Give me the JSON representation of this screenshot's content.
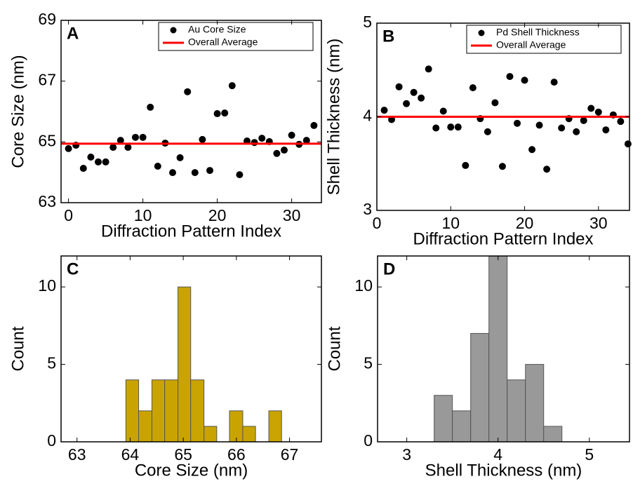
{
  "chart_data": [
    {
      "type": "scatter",
      "label": "A",
      "xlabel": "Diffraction Pattern Index",
      "ylabel": "Core Size (nm)",
      "xlim": [
        -1,
        34
      ],
      "xticks": [
        0,
        10,
        20,
        30
      ],
      "ylim": [
        63,
        69
      ],
      "yticks": [
        63,
        65,
        67,
        69
      ],
      "legend": "upper right",
      "series": [
        {
          "name": "Au Core Size",
          "color": "#000000",
          "kind": "markers",
          "x": [
            0,
            1,
            2,
            3,
            4,
            5,
            6,
            7,
            8,
            9,
            10,
            11,
            12,
            13,
            14,
            15,
            16,
            17,
            18,
            19,
            20,
            21,
            22,
            23,
            24,
            25,
            26,
            27,
            28,
            29,
            30,
            31,
            32,
            33
          ],
          "values": [
            64.78,
            64.89,
            64.13,
            64.5,
            64.34,
            64.34,
            64.82,
            65.05,
            64.82,
            65.15,
            65.15,
            66.14,
            64.2,
            64.96,
            63.99,
            64.48,
            66.65,
            63.99,
            65.08,
            64.06,
            65.93,
            65.95,
            66.85,
            63.92,
            65.03,
            64.98,
            65.12,
            65.01,
            64.62,
            64.73,
            65.22,
            64.92,
            65.05,
            65.54
          ]
        },
        {
          "name": "Overall Average",
          "color": "#ff0000",
          "kind": "hline",
          "values": [
            64.94
          ]
        }
      ]
    },
    {
      "type": "scatter",
      "label": "B",
      "xlabel": "Diffraction Pattern Index",
      "ylabel": "Shell Thickness (nm)",
      "xlim": [
        0,
        34.2
      ],
      "xticks": [
        0,
        10,
        20,
        30
      ],
      "ylim": [
        3,
        5
      ],
      "yticks": [
        3,
        4,
        5
      ],
      "legend": "upper right",
      "series": [
        {
          "name": "Pd Shell Thickness",
          "color": "#000000",
          "kind": "markers",
          "x": [
            1,
            2,
            3,
            4,
            5,
            6,
            7,
            8,
            9,
            10,
            11,
            12,
            13,
            14,
            15,
            16,
            17,
            18,
            19,
            20,
            21,
            22,
            23,
            24,
            25,
            26,
            27,
            28,
            29,
            30,
            31,
            32,
            33,
            34
          ],
          "values": [
            4.07,
            3.97,
            4.32,
            4.14,
            4.26,
            4.2,
            4.51,
            3.88,
            4.06,
            3.89,
            3.89,
            3.48,
            4.31,
            3.98,
            3.84,
            4.15,
            3.47,
            4.43,
            3.93,
            4.39,
            3.65,
            3.91,
            3.44,
            4.37,
            3.88,
            3.98,
            3.84,
            3.96,
            4.09,
            4.05,
            3.86,
            4.02,
            3.95,
            3.71
          ]
        },
        {
          "name": "Overall Average",
          "color": "#ff0000",
          "kind": "hline",
          "values": [
            4.0
          ]
        }
      ]
    },
    {
      "type": "histogram",
      "label": "C",
      "xlabel": "Core Size (nm)",
      "ylabel": "Count",
      "color": "#c9a400",
      "xlim": [
        62.7,
        67.6
      ],
      "xticks": [
        63,
        64,
        65,
        66,
        67
      ],
      "ylim": [
        0,
        12
      ],
      "yticks": [
        0,
        5,
        10
      ],
      "bins": [
        63.92,
        64.16,
        64.41,
        64.65,
        64.9,
        65.14,
        65.39,
        65.63,
        65.87,
        66.12,
        66.36,
        66.61,
        66.85
      ],
      "values": [
        4,
        2,
        4,
        4,
        10,
        4,
        1,
        0,
        2,
        1,
        0,
        2
      ]
    },
    {
      "type": "histogram",
      "label": "D",
      "xlabel": "Shell Thickness (nm)",
      "ylabel": "Count",
      "color": "#999999",
      "xlim": [
        2.68,
        5.44
      ],
      "xticks": [
        3,
        4,
        5
      ],
      "ylim": [
        0,
        12
      ],
      "yticks": [
        0,
        5,
        10
      ],
      "bins": [
        3.3,
        3.5,
        3.7,
        3.9,
        4.1,
        4.3,
        4.5,
        4.7
      ],
      "values": [
        3,
        2,
        7,
        12,
        4,
        5,
        1
      ]
    }
  ]
}
